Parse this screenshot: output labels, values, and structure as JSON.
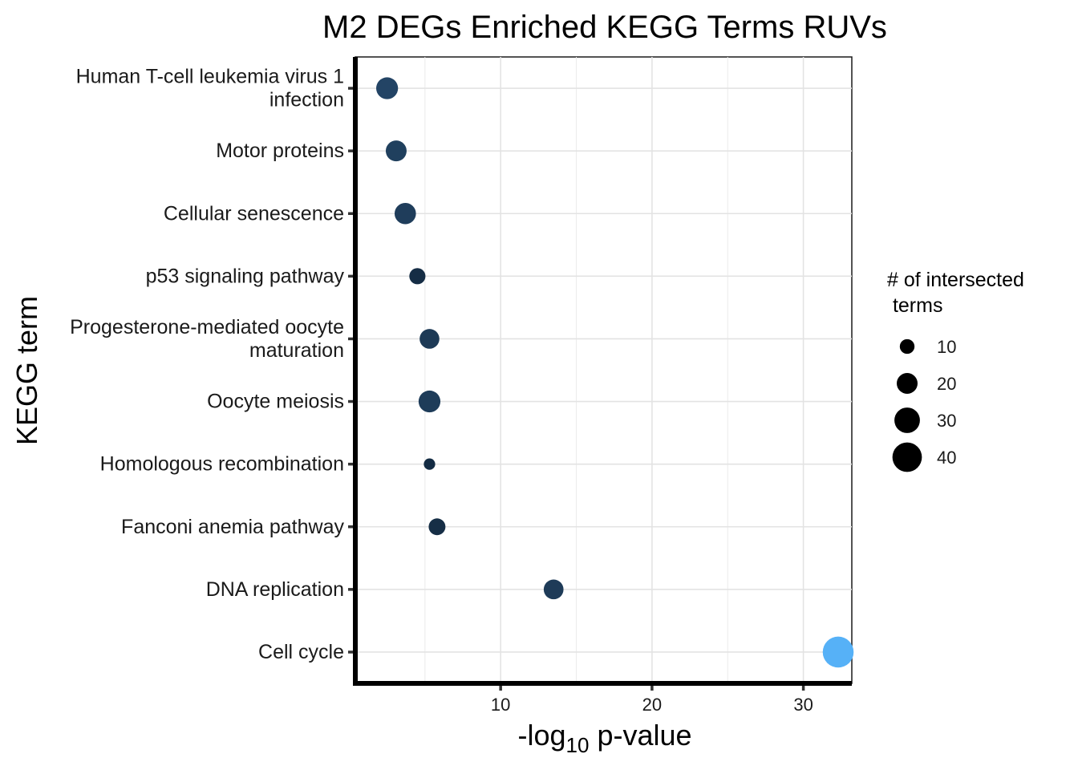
{
  "chart_data": {
    "type": "scatter",
    "title": "M2 DEGs Enriched KEGG Terms RUVs",
    "xlabel": "-log10 p-value",
    "xlabel_parts": {
      "prefix": "-log",
      "subscript": "10",
      "suffix": " p-value"
    },
    "ylabel": "KEGG term",
    "xlim": [
      0.4,
      33.2
    ],
    "xticks": [
      10,
      20,
      30
    ],
    "grid": true,
    "categories": [
      "Cell cycle",
      "DNA replication",
      "Fanconi anemia pathway",
      "Homologous recombination",
      "Oocyte meiosis",
      "Progesterone-mediated oocyte maturation",
      "p53 signaling pathway",
      "Cellular senescence",
      "Motor proteins",
      "Human T-cell leukemia virus 1 infection"
    ],
    "category_lines": [
      [
        "Cell cycle"
      ],
      [
        "DNA replication"
      ],
      [
        "Fanconi anemia pathway"
      ],
      [
        "Homologous recombination"
      ],
      [
        "Oocyte meiosis"
      ],
      [
        "Progesterone-mediated oocyte",
        "maturation"
      ],
      [
        "p53 signaling pathway"
      ],
      [
        "Cellular senescence"
      ],
      [
        "Motor proteins"
      ],
      [
        "Human T-cell leukemia virus 1",
        "infection"
      ]
    ],
    "points": [
      {
        "term": "Cell cycle",
        "x": 32.3,
        "count": 44,
        "color": "#56B1F7"
      },
      {
        "term": "DNA replication",
        "x": 13.5,
        "count": 18,
        "color": "#1E3B58"
      },
      {
        "term": "Fanconi anemia pathway",
        "x": 5.8,
        "count": 13,
        "color": "#162E46"
      },
      {
        "term": "Homologous recombination",
        "x": 5.3,
        "count": 6,
        "color": "#132B43"
      },
      {
        "term": "Oocyte meiosis",
        "x": 5.3,
        "count": 22,
        "color": "#1E3C59"
      },
      {
        "term": "Progesterone-mediated oocyte maturation",
        "x": 5.3,
        "count": 18,
        "color": "#1D3A56"
      },
      {
        "term": "p53 signaling pathway",
        "x": 4.5,
        "count": 12,
        "color": "#152D45"
      },
      {
        "term": "Cellular senescence",
        "x": 3.7,
        "count": 21,
        "color": "#1F3D5B"
      },
      {
        "term": "Motor proteins",
        "x": 3.1,
        "count": 20,
        "color": "#20405E"
      },
      {
        "term": "Human T-cell leukemia virus 1 infection",
        "x": 2.5,
        "count": 22,
        "color": "#234465"
      }
    ],
    "legend": {
      "title_lines": [
        "# of intersected",
        " terms"
      ],
      "placement": "right",
      "sizes": [
        10,
        20,
        30,
        40
      ],
      "color": "#000000"
    }
  }
}
